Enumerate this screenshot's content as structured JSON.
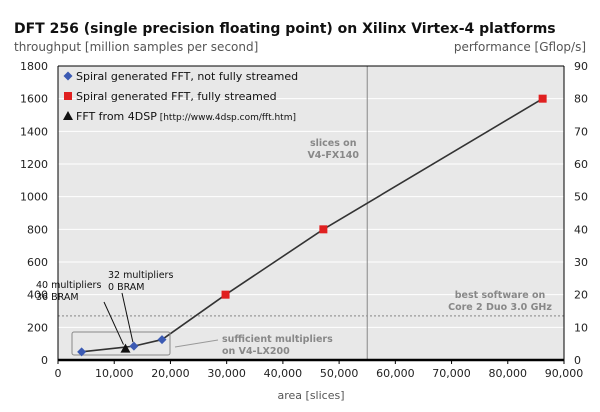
{
  "chart_data": {
    "type": "scatter",
    "title": "DFT 256 (single precision floating point) on Xilinx Virtex-4 platforms",
    "ylabel_left": "throughput [million samples per second]",
    "ylabel_right": "performance [Gflop/s]",
    "xlabel": "area [slices]",
    "xlim": [
      0,
      90000
    ],
    "ylim": [
      0,
      1800
    ],
    "ylim_right": [
      0,
      90
    ],
    "x_ticks": [
      "0",
      "10,000",
      "20,000",
      "30,000",
      "40,000",
      "50,000",
      "60,000",
      "70,000",
      "80,000",
      "90,000"
    ],
    "y_ticks_left": [
      "0",
      "200",
      "400",
      "600",
      "800",
      "1000",
      "1200",
      "1400",
      "1600",
      "1800"
    ],
    "y_ticks_right": [
      "0",
      "10",
      "20",
      "30",
      "40",
      "50",
      "60",
      "70",
      "80",
      "90"
    ],
    "x_tick_values": [
      0,
      10000,
      20000,
      30000,
      40000,
      50000,
      60000,
      70000,
      80000,
      90000
    ],
    "y_tick_values": [
      0,
      200,
      400,
      600,
      800,
      1000,
      1200,
      1400,
      1600,
      1800
    ],
    "background_color": "#e8e8e8",
    "grid": true,
    "legend_position": "top-left",
    "series": [
      {
        "name": "Spiral generated FFT, not fully streamed",
        "marker": "diamond",
        "color": "#3b5ab3",
        "points": [
          [
            4200,
            50
          ],
          [
            13500,
            85
          ],
          [
            18500,
            125
          ]
        ]
      },
      {
        "name": "Spiral generated FFT, fully streamed",
        "marker": "square",
        "color": "#e02020",
        "points": [
          [
            29800,
            400
          ],
          [
            47200,
            800
          ],
          [
            86200,
            1600
          ]
        ]
      },
      {
        "name": "FFT from 4DSP",
        "name_suffix": "[http://www.4dsp.com/fft.htm]",
        "marker": "triangle",
        "color": "#111111",
        "points": [
          [
            12000,
            70
          ]
        ]
      }
    ],
    "frontier_line": [
      [
        4200,
        50
      ],
      [
        13500,
        85
      ],
      [
        18500,
        125
      ],
      [
        29800,
        400
      ],
      [
        47200,
        800
      ],
      [
        86200,
        1600
      ]
    ],
    "reference_lines": [
      {
        "orientation": "vertical",
        "x": 55000,
        "label_lines": [
          "slices on",
          "V4-FX140"
        ]
      },
      {
        "orientation": "horizontal",
        "y": 270,
        "label_lines": [
          "best software on",
          "Core 2 Duo 3.0 GHz"
        ]
      }
    ],
    "annotations": [
      {
        "lines": [
          "40 multipliers",
          "36 BRAM"
        ]
      },
      {
        "lines": [
          "32 multipliers",
          "0 BRAM"
        ]
      },
      {
        "lines": [
          "sufficient multipliers",
          "on V4-LX200"
        ]
      }
    ],
    "colors": {
      "plot_bg": "#e8e8e8",
      "frame": "#000000",
      "frontier": "#333333",
      "ref_line_v": "#888888",
      "ref_line_h": "#999999",
      "ann_gray": "#999999"
    }
  }
}
